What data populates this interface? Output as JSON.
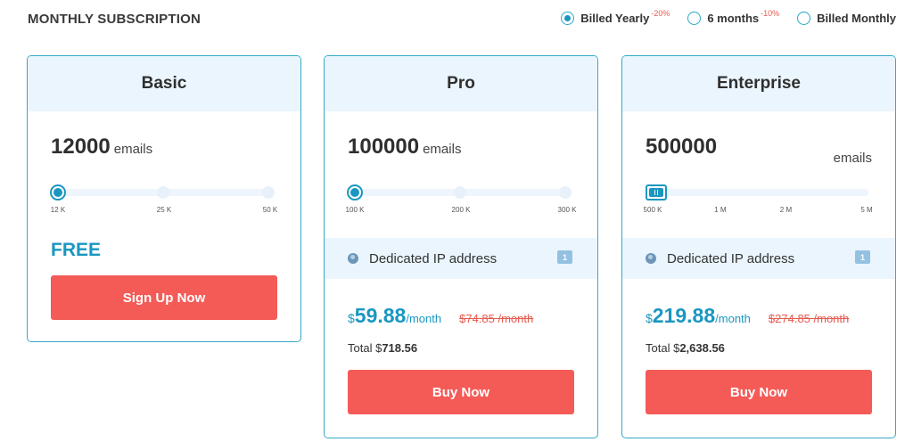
{
  "header": {
    "title": "MONTHLY SUBSCRIPTION"
  },
  "billing": {
    "options": [
      {
        "label": "Billed Yearly",
        "discount": "-20%",
        "selected": true
      },
      {
        "label": "6 months",
        "discount": "-10%",
        "selected": false
      },
      {
        "label": "Billed Monthly",
        "discount": "",
        "selected": false
      }
    ]
  },
  "plans": {
    "basic": {
      "name": "Basic",
      "emails": "12000",
      "emails_unit": "emails",
      "ticks": [
        "12 K",
        "25 K",
        "50 K"
      ],
      "price_label": "FREE",
      "cta": "Sign Up Now"
    },
    "pro": {
      "name": "Pro",
      "emails": "100000",
      "emails_unit": "emails",
      "ticks": [
        "100 K",
        "200 K",
        "300 K"
      ],
      "feature": "Dedicated IP address",
      "feature_count": "1",
      "currency": "$",
      "price": "59.88",
      "per": "/month",
      "old_price": "$74.85 /month",
      "total_label": "Total $",
      "total_value": "718.56",
      "cta": "Buy Now"
    },
    "enterprise": {
      "name": "Enterprise",
      "emails": "500000",
      "emails_unit": "emails",
      "ticks": [
        "500 K",
        "1 M",
        "2 M",
        "5 M"
      ],
      "feature": "Dedicated IP address",
      "feature_count": "1",
      "currency": "$",
      "price": "219.88",
      "per": "/month",
      "old_price": "$274.85 /month",
      "total_label": "Total $",
      "total_value": "2,638.56",
      "cta": "Buy Now"
    }
  },
  "colors": {
    "accent": "#1a97c0",
    "cta": "#f45b57",
    "header_bg": "#eaf5fd",
    "strike": "#e65a4f"
  }
}
